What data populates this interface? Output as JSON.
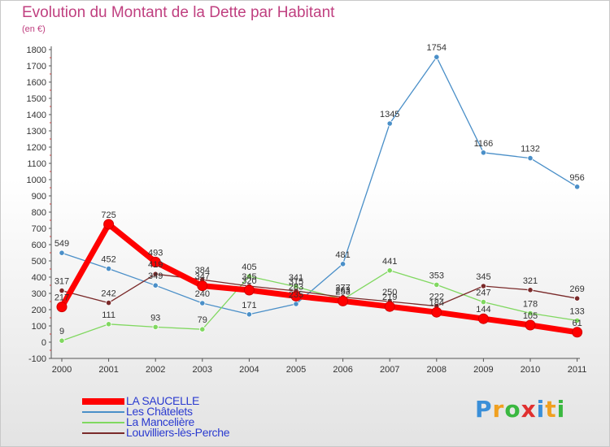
{
  "chart_data": {
    "type": "line",
    "title": "Evolution du Montant de la Dette par Habitant",
    "ylabel": "(en €)",
    "x": [
      "2000",
      "2001",
      "2002",
      "2003",
      "2004",
      "2005",
      "2006",
      "2007",
      "2008",
      "2009",
      "2010",
      "2011"
    ],
    "ylim": [
      -100,
      1800
    ],
    "yticks": [
      -100,
      0,
      100,
      200,
      300,
      400,
      500,
      600,
      700,
      800,
      900,
      1000,
      1100,
      1200,
      1300,
      1400,
      1500,
      1600,
      1700,
      1800
    ],
    "grid": false,
    "legend": "bottom-left",
    "series": [
      {
        "name": "LA SAUCELLE",
        "color": "#ff0000",
        "values": [
          217,
          725,
          493,
          347,
          320,
          283,
          253,
          219,
          184,
          144,
          105,
          61
        ]
      },
      {
        "name": "Les Châtelets",
        "color": "#4a8fc8",
        "values": [
          549,
          452,
          349,
          240,
          171,
          235,
          481,
          1345,
          1754,
          1166,
          1132,
          956
        ]
      },
      {
        "name": "La Mancelière",
        "color": "#80d860",
        "values": [
          9,
          111,
          93,
          79,
          405,
          341,
          263,
          441,
          353,
          247,
          178,
          133
        ]
      },
      {
        "name": "Louvilliers-lès-Perche",
        "color": "#7a2a2a",
        "values": [
          317,
          242,
          419,
          384,
          345,
          315,
          277,
          250,
          222,
          345,
          321,
          269
        ]
      }
    ]
  },
  "brand": {
    "letters": [
      "P",
      "r",
      "o",
      "x",
      "i",
      "t",
      "i"
    ],
    "colors": [
      "#3a8fd8",
      "#f0a020",
      "#3ab840",
      "#e03030",
      "#3a8fd8",
      "#f0a020",
      "#3ab840"
    ]
  }
}
